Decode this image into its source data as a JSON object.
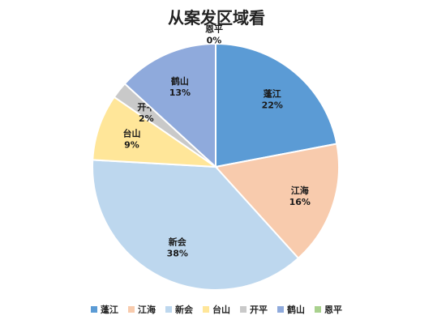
{
  "chart_data": {
    "type": "pie",
    "title": "从案发区域看",
    "slices": [
      {
        "name": "蓬江",
        "pct_label": "22%",
        "value": 22.0,
        "color": "#5b9bd5"
      },
      {
        "name": "江海",
        "pct_label": "16%",
        "value": 16.3,
        "color": "#f8cbad"
      },
      {
        "name": "新会",
        "pct_label": "38%",
        "value": 37.6,
        "color": "#bdd7ee"
      },
      {
        "name": "台山",
        "pct_label": "9%",
        "value": 8.7,
        "color": "#ffe699"
      },
      {
        "name": "开平",
        "pct_label": "2%",
        "value": 2.2,
        "color": "#c9c9c9"
      },
      {
        "name": "鹤山",
        "pct_label": "13%",
        "value": 13.2,
        "color": "#8faadc"
      },
      {
        "name": "恩平",
        "pct_label": "0%",
        "value": 0.0,
        "color": "#a9d18e"
      }
    ],
    "legend_position": "bottom"
  }
}
